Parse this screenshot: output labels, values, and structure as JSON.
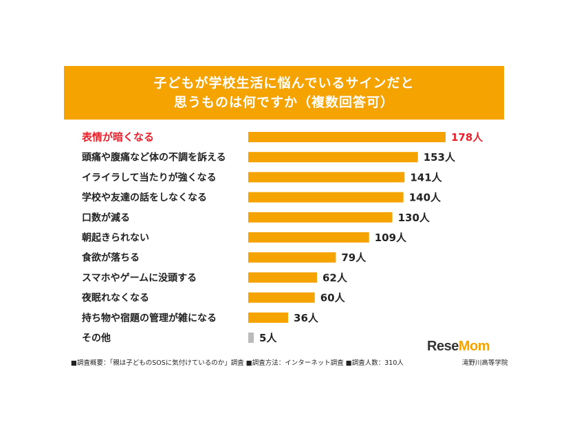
{
  "chart_data": {
    "type": "bar",
    "orientation": "horizontal",
    "title": "子どもが学校生活に悩んでいるサインだと思うものは何ですか（複数回答可）",
    "title_lines": [
      "子どもが学校生活に悩んでいるサインだと",
      "思うものは何ですか（複数回答可）"
    ],
    "categories": [
      "表情が暗くなる",
      "頭痛や腹痛など体の不調を訴える",
      "イライラして当たりが強くなる",
      "学校や友達の話をしなくなる",
      "口数が減る",
      "朝起きられない",
      "食欲が落ちる",
      "スマホやゲームに没頭する",
      "夜眠れなくなる",
      "持ち物や宿題の管理が雑になる",
      "その他"
    ],
    "values": [
      178,
      153,
      141,
      140,
      130,
      109,
      79,
      62,
      60,
      36,
      5
    ],
    "value_labels": [
      "178人",
      "153人",
      "141人",
      "140人",
      "130人",
      "109人",
      "79人",
      "62人",
      "60人",
      "36人",
      "5人"
    ],
    "unit": "人",
    "highlight_index": 0,
    "xlim": [
      0,
      178
    ],
    "grid": false,
    "legend": "none"
  },
  "colors": {
    "bar": "#f5a300",
    "other_bar": "#bbbbbb",
    "highlight_text": "#e8212b",
    "banner": "#f5a300",
    "text": "#222222"
  },
  "footnote": "■調査概要：「親は子どものSOSに気付けているのか」調査 ■調査方法：インターネット調査 ■調査人数：310人",
  "source": "滝野川高等学院",
  "logo": {
    "part1": "Rese",
    "part2": "Mom",
    "small": "リセマム"
  }
}
